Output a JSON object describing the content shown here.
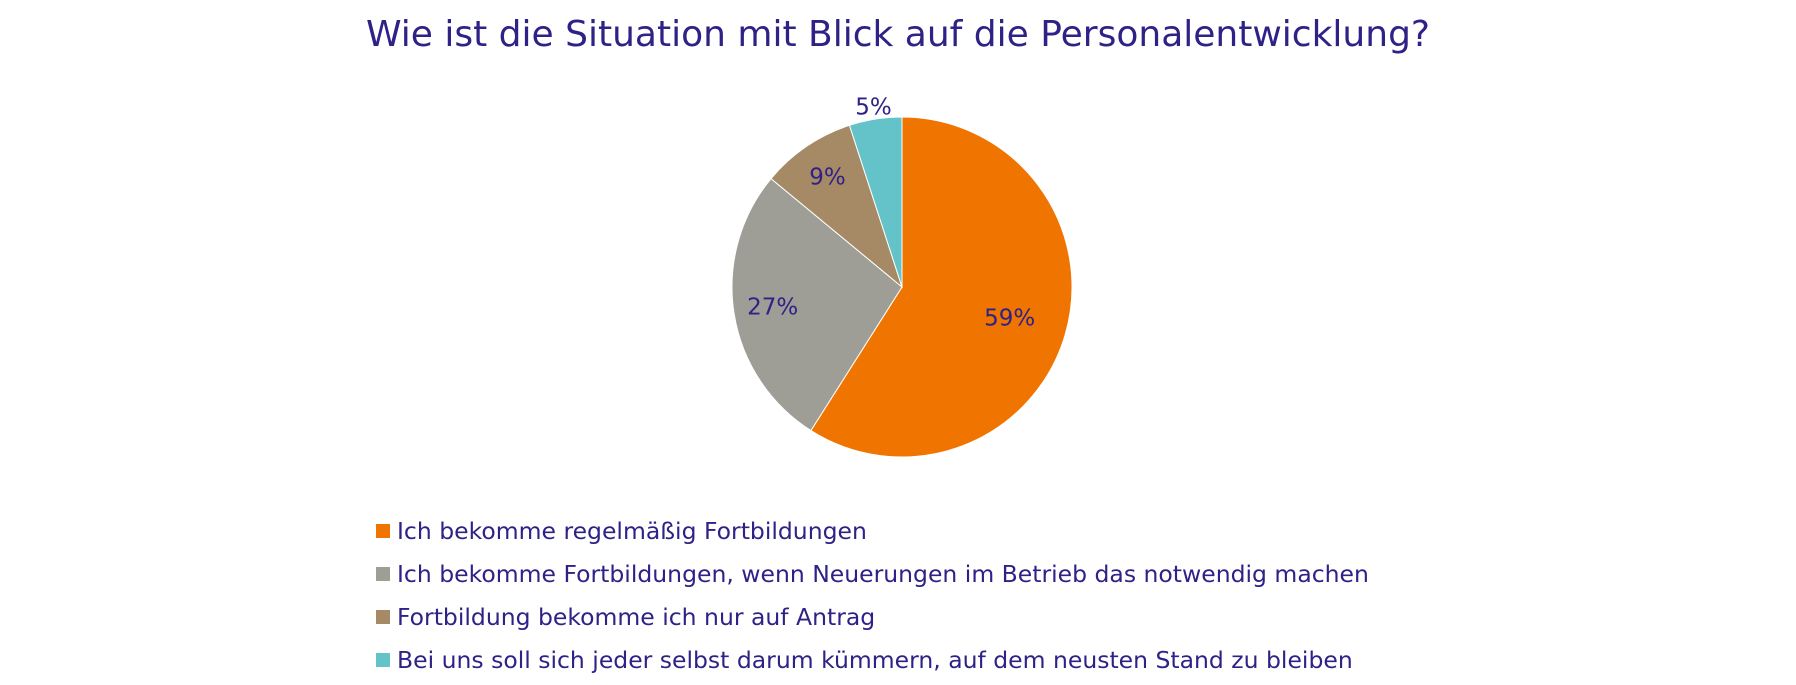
{
  "chart_data": {
    "type": "pie",
    "title": "Wie ist die Situation mit Blick auf die Personalentwicklung?",
    "categories": [
      "Ich bekomme regelmäßig Fortbildungen",
      "Ich bekomme Fortbildungen, wenn Neuerungen im Betrieb das notwendig machen",
      "Fortbildung bekomme ich nur auf Antrag",
      "Bei uns soll sich jeder selbst darum kümmern, auf dem neusten Stand zu bleiben"
    ],
    "values": [
      59,
      27,
      9,
      5
    ],
    "value_labels": [
      "59%",
      "27%",
      "9%",
      "5%"
    ],
    "colors": [
      "#f07400",
      "#9e9e96",
      "#a68a66",
      "#63c3c8"
    ],
    "text_color": "#2e2287",
    "legend_placement": "bottom",
    "start_angle": "12 o'clock",
    "direction": "clockwise"
  }
}
